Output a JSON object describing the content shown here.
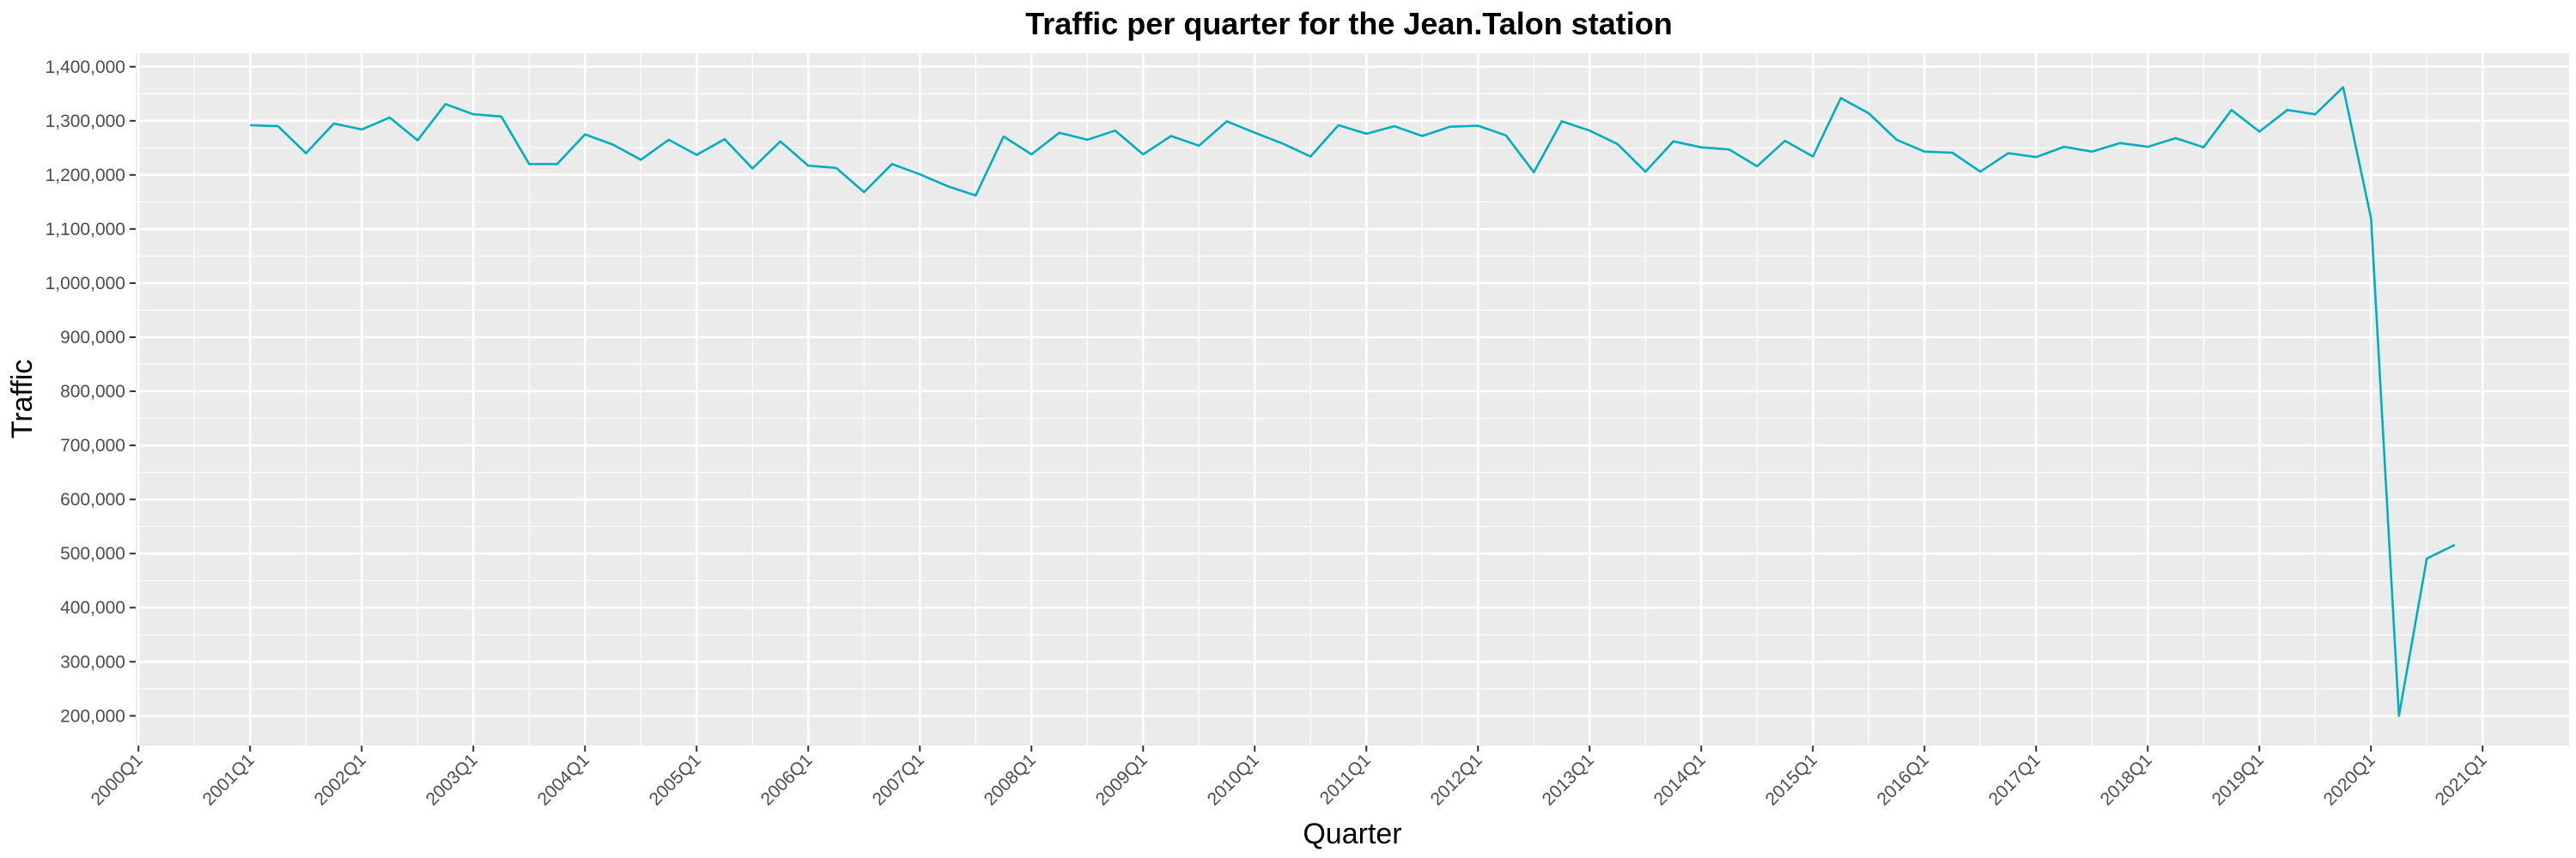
{
  "chart_data": {
    "type": "line",
    "title": "Traffic per quarter for the Jean.Talon station",
    "xlabel": "Quarter",
    "ylabel": "Traffic",
    "x_tick_labels": [
      "2000Q1",
      "2001Q1",
      "2002Q1",
      "2003Q1",
      "2004Q1",
      "2005Q1",
      "2006Q1",
      "2007Q1",
      "2008Q1",
      "2009Q1",
      "2010Q1",
      "2011Q1",
      "2012Q1",
      "2013Q1",
      "2014Q1",
      "2015Q1",
      "2016Q1",
      "2017Q1",
      "2018Q1",
      "2019Q1",
      "2020Q1",
      "2021Q1"
    ],
    "y_ticks": [
      200000,
      300000,
      400000,
      500000,
      600000,
      700000,
      800000,
      900000,
      1000000,
      1100000,
      1200000,
      1300000,
      1400000
    ],
    "y_tick_labels": [
      "200,000",
      "300,000",
      "400,000",
      "500,000",
      "600,000",
      "700,000",
      "800,000",
      "900,000",
      "1,000,000",
      "1,100,000",
      "1,200,000",
      "1,300,000",
      "1,400,000"
    ],
    "xlim": [
      "2000Q1",
      "2021Q3"
    ],
    "ylim": [
      145000,
      1425000
    ],
    "grid": true,
    "line_color": "#00aebf",
    "panel_color": "#ebebeb",
    "gridline_color": "#ffffff",
    "series": [
      {
        "x": [
          "2001Q1",
          "2001Q2",
          "2001Q3",
          "2001Q4",
          "2002Q1",
          "2002Q2",
          "2002Q3",
          "2002Q4",
          "2003Q1",
          "2003Q2",
          "2003Q3",
          "2003Q4",
          "2004Q1",
          "2004Q2",
          "2004Q3",
          "2004Q4",
          "2005Q1",
          "2005Q2",
          "2005Q3",
          "2005Q4",
          "2006Q1",
          "2006Q2",
          "2006Q3",
          "2006Q4",
          "2007Q1",
          "2007Q2",
          "2007Q3",
          "2007Q4",
          "2008Q1",
          "2008Q2",
          "2008Q3",
          "2008Q4",
          "2009Q1",
          "2009Q2",
          "2009Q3",
          "2009Q4",
          "2010Q1",
          "2010Q2",
          "2010Q3",
          "2010Q4",
          "2011Q1",
          "2011Q2",
          "2011Q3",
          "2011Q4",
          "2012Q1",
          "2012Q2",
          "2012Q3",
          "2012Q4",
          "2013Q1",
          "2013Q2",
          "2013Q3",
          "2013Q4",
          "2014Q1",
          "2014Q2",
          "2014Q3",
          "2014Q4",
          "2015Q1",
          "2015Q2",
          "2015Q3",
          "2015Q4",
          "2016Q1",
          "2016Q2",
          "2016Q3",
          "2016Q4",
          "2017Q1",
          "2017Q2",
          "2017Q3",
          "2017Q4",
          "2018Q1",
          "2018Q2",
          "2018Q3",
          "2018Q4",
          "2019Q1",
          "2019Q2",
          "2019Q3",
          "2019Q4",
          "2020Q1",
          "2020Q2",
          "2020Q3",
          "2020Q4"
        ],
        "values": [
          1292000,
          1290000,
          1240000,
          1295000,
          1284000,
          1306000,
          1264000,
          1331000,
          1312000,
          1308000,
          1220000,
          1220000,
          1275000,
          1256000,
          1228000,
          1265000,
          1237000,
          1266000,
          1212000,
          1262000,
          1217000,
          1213000,
          1168000,
          1220000,
          1201000,
          1179000,
          1162000,
          1271000,
          1238000,
          1278000,
          1265000,
          1282000,
          1238000,
          1272000,
          1254000,
          1299000,
          1278000,
          1258000,
          1234000,
          1292000,
          1276000,
          1290000,
          1272000,
          1289000,
          1291000,
          1273000,
          1205000,
          1299000,
          1282000,
          1257000,
          1206000,
          1262000,
          1251000,
          1247000,
          1216000,
          1263000,
          1234000,
          1342000,
          1314000,
          1265000,
          1243000,
          1241000,
          1206000,
          1240000,
          1233000,
          1252000,
          1243000,
          1259000,
          1252000,
          1268000,
          1251000,
          1320000,
          1280000,
          1320000,
          1312000,
          1362000,
          1120000,
          200000,
          491000,
          516000
        ]
      }
    ]
  }
}
